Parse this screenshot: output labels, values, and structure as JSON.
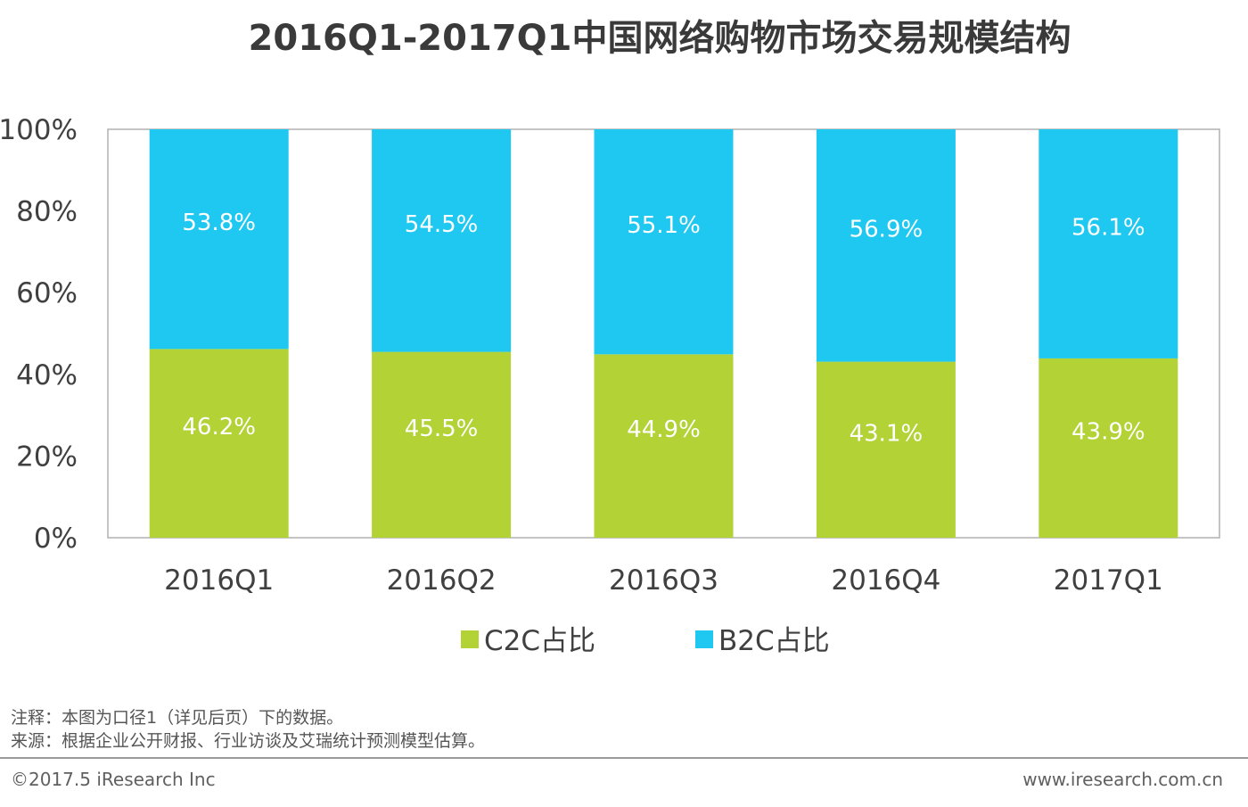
{
  "title": "2016Q1-2017Q1中国网络购物市场交易规模结构",
  "chart_data": {
    "type": "bar",
    "stacked": true,
    "percent": true,
    "categories": [
      "2016Q1",
      "2016Q2",
      "2016Q3",
      "2016Q4",
      "2017Q1"
    ],
    "series": [
      {
        "name": "C2C占比",
        "values": [
          46.2,
          45.5,
          44.9,
          43.1,
          43.9
        ],
        "color": "#b2d235"
      },
      {
        "name": "B2C占比",
        "values": [
          53.8,
          54.5,
          55.1,
          56.9,
          56.1
        ],
        "color": "#1fc8f0"
      }
    ],
    "ylim": [
      0,
      100
    ],
    "yticks": [
      "0%",
      "20%",
      "40%",
      "60%",
      "80%",
      "100%"
    ],
    "data_label_suffix": "%",
    "legend_position": "bottom",
    "grid": false
  },
  "notes": [
    "注释：本图为口径1（详见后页）下的数据。",
    "来源：根据企业公开财报、行业访谈及艾瑞统计预测模型估算。"
  ],
  "footer": {
    "copyright": "©2017.5 iResearch Inc",
    "website": "www.iresearch.com.cn"
  }
}
